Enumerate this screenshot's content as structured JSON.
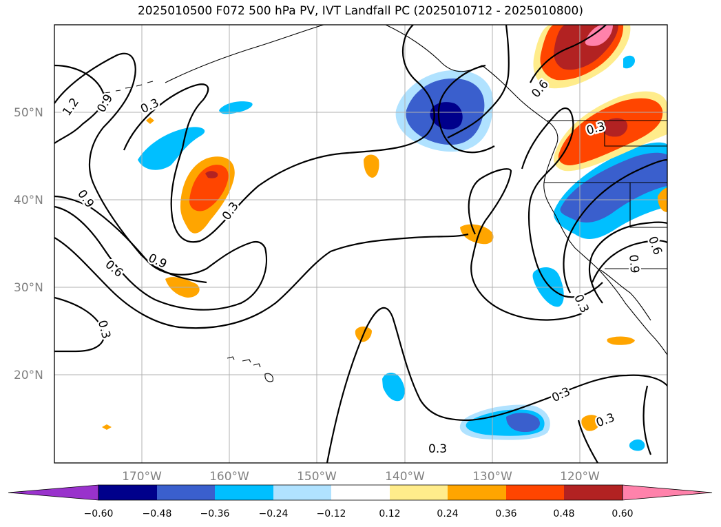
{
  "title": "2025010500 F072 500 hPa PV, IVT Landfall PC (2025010712 - 2025010800)",
  "map": {
    "lon_range": [
      -180,
      -110
    ],
    "lat_range": [
      10,
      60
    ],
    "lat_ticks": [
      {
        "value": 20,
        "label": "20°N"
      },
      {
        "value": 30,
        "label": "30°N"
      },
      {
        "value": 40,
        "label": "40°N"
      },
      {
        "value": 50,
        "label": "50°N"
      }
    ],
    "lon_ticks": [
      {
        "value": -170,
        "label": "170°W"
      },
      {
        "value": -160,
        "label": "160°W"
      },
      {
        "value": -150,
        "label": "150°W"
      },
      {
        "value": -140,
        "label": "140°W"
      },
      {
        "value": -130,
        "label": "130°W"
      },
      {
        "value": -120,
        "label": "120°W"
      }
    ],
    "contour_labels": [
      "0.3",
      "0.6",
      "0.9",
      "1.2"
    ]
  },
  "colorbar": {
    "colors": [
      "#9932cc",
      "#00008b",
      "#3a5fcd",
      "#00bfff",
      "#b0e2ff",
      "#ffffff",
      "#ffec8b",
      "#ffa500",
      "#ff4500",
      "#b22222",
      "#ff82ab"
    ],
    "tick_labels": [
      "−0.60",
      "−0.48",
      "−0.36",
      "−0.24",
      "−0.12",
      "0.12",
      "0.24",
      "0.36",
      "0.48",
      "0.60"
    ]
  }
}
